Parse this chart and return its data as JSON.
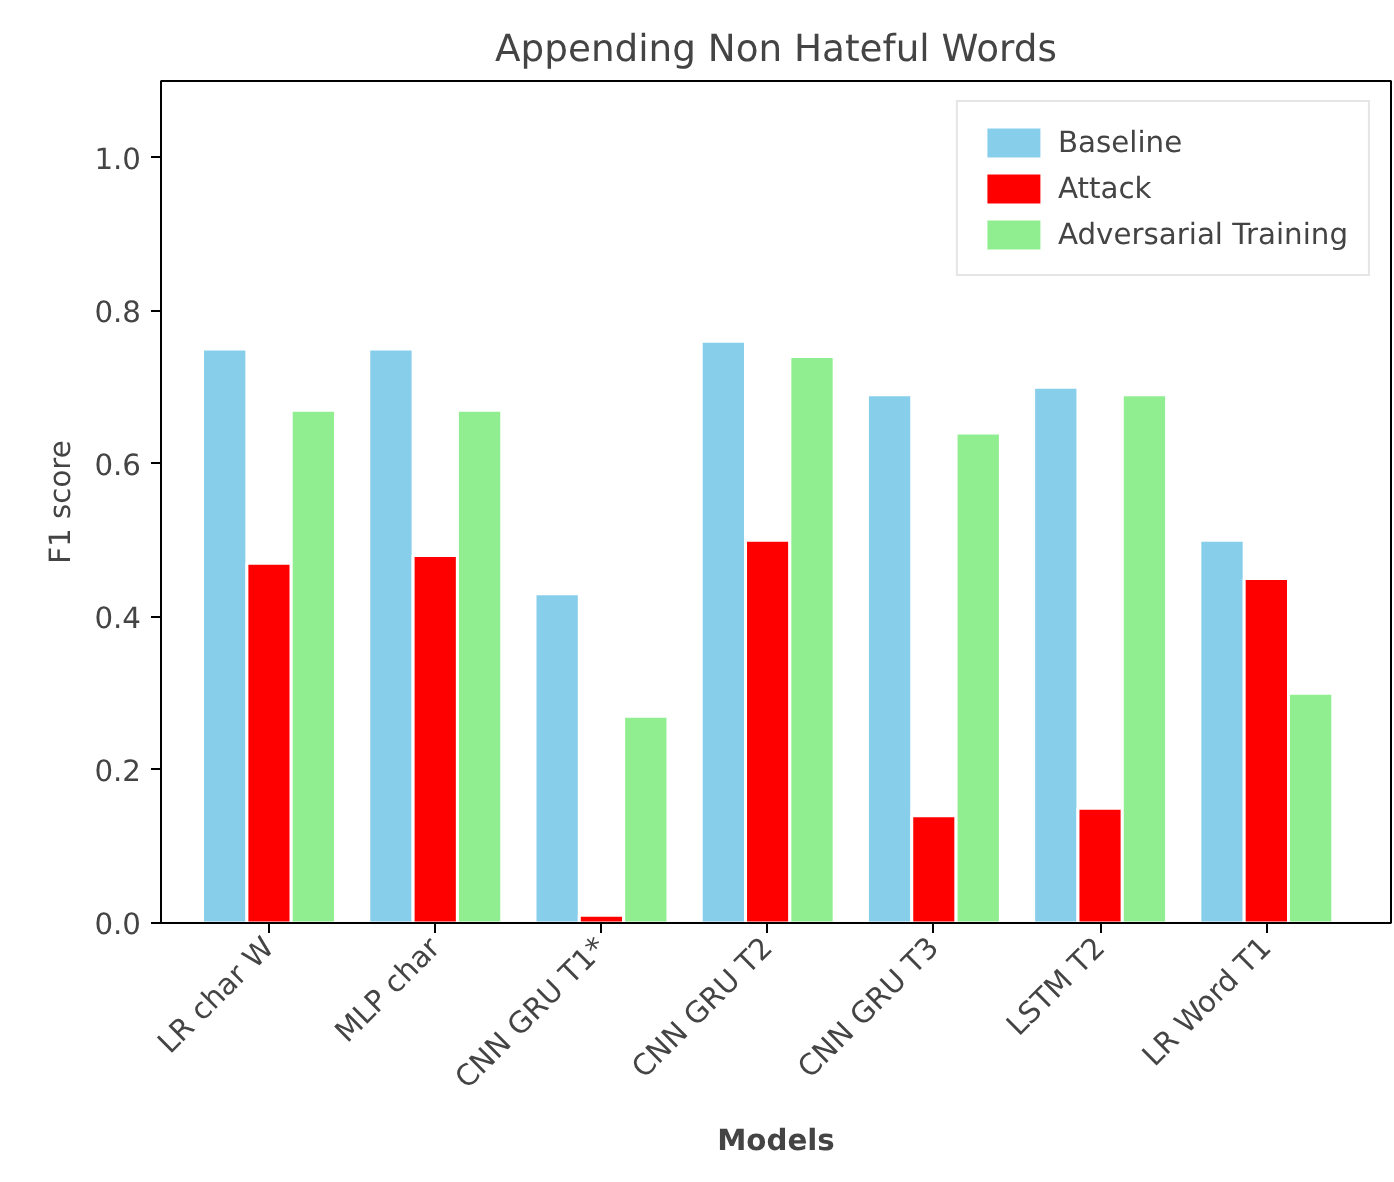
{
  "chart_data": {
    "type": "bar",
    "title": "Appending Non Hateful Words",
    "xlabel": "Models",
    "ylabel": "F1 score",
    "categories": [
      "LR char W",
      "MLP char",
      "CNN GRU T1*",
      "CNN GRU T2",
      "CNN GRU T3",
      "LSTM T2",
      "LR Word T1"
    ],
    "series": [
      {
        "name": "Baseline",
        "color": "#87ceeb",
        "values": [
          0.75,
          0.75,
          0.43,
          0.76,
          0.69,
          0.7,
          0.5
        ]
      },
      {
        "name": "Attack",
        "color": "#ff0000",
        "values": [
          0.47,
          0.48,
          0.01,
          0.5,
          0.14,
          0.15,
          0.45
        ]
      },
      {
        "name": "Adversarial Training",
        "color": "#90ee90",
        "values": [
          0.67,
          0.67,
          0.27,
          0.74,
          0.64,
          0.69,
          0.3
        ]
      }
    ],
    "ylim": [
      0,
      1.1
    ],
    "yticks": [
      {
        "value": 0,
        "label": "0.0"
      },
      {
        "value": 0.2,
        "label": "0.2"
      },
      {
        "value": 0.4,
        "label": "0.4"
      },
      {
        "value": 0.6,
        "label": "0.6"
      },
      {
        "value": 0.8,
        "label": "0.8"
      },
      {
        "value": 1.0,
        "label": "1.0"
      }
    ],
    "grid": false,
    "legend": "top right"
  }
}
